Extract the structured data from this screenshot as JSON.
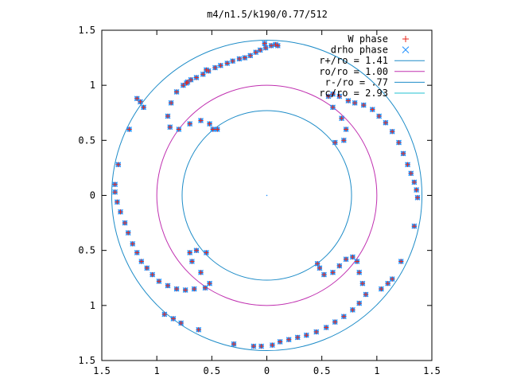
{
  "chart_data": {
    "type": "scatter",
    "title": "m4/n1.5/k190/0.77/512",
    "xlim": [
      -1.5,
      1.5
    ],
    "ylim": [
      -1.5,
      1.5
    ],
    "xticks": [
      -1.5,
      -1,
      -0.5,
      0,
      0.5,
      1,
      1.5
    ],
    "yticks": [
      -1.5,
      -1,
      -0.5,
      0,
      0.5,
      1,
      1.5
    ],
    "xtick_labels": [
      "1.5",
      "1",
      "0.5",
      "0",
      "0.5",
      "1",
      "1.5"
    ],
    "ytick_labels": [
      "1.5",
      "1",
      "0.5",
      "0",
      "0.5",
      "1",
      "1.5"
    ],
    "legend_position": "top-right",
    "grid": false,
    "legend": [
      {
        "label": "W phase",
        "marker": "+",
        "color": "#e8281c"
      },
      {
        "label": "drho phase",
        "marker": "x",
        "color": "#1e90ff"
      },
      {
        "label": "r+/ro = 1.41",
        "line": true,
        "color": "#1e8cc8"
      },
      {
        "label": "ro/ro = 1.00",
        "line": true,
        "color": "#c030b0"
      },
      {
        "label": "r-/ro = .77",
        "line": true,
        "color": "#1e8cc8"
      },
      {
        "label": "rc/ro = 2.93",
        "line": true,
        "color": "#20c0d0"
      }
    ],
    "circles": [
      {
        "name": "r+/ro",
        "r": 1.41,
        "color": "#1e8cc8"
      },
      {
        "name": "ro/ro",
        "r": 1.0,
        "color": "#c030b0"
      },
      {
        "name": "r-/ro",
        "r": 0.77,
        "color": "#1e8cc8"
      }
    ],
    "series": [
      {
        "name": "W phase",
        "color": "#e8281c",
        "points": [
          [
            0.08,
            1.37
          ],
          [
            0.04,
            1.36
          ],
          [
            -0.01,
            1.34
          ],
          [
            -0.06,
            1.32
          ],
          [
            -0.1,
            1.3
          ],
          [
            -0.15,
            1.27
          ],
          [
            -0.2,
            1.25
          ],
          [
            -0.25,
            1.24
          ],
          [
            -0.31,
            1.22
          ],
          [
            -0.36,
            1.2
          ],
          [
            -0.42,
            1.18
          ],
          [
            -0.47,
            1.16
          ],
          [
            -0.53,
            1.13
          ],
          [
            -0.58,
            1.1
          ],
          [
            -0.64,
            1.07
          ],
          [
            -0.69,
            1.05
          ],
          [
            -0.73,
            1.02
          ],
          [
            -0.76,
            1.0
          ],
          [
            -0.82,
            0.94
          ],
          [
            -0.87,
            0.84
          ],
          [
            -0.9,
            0.72
          ],
          [
            -0.88,
            0.62
          ],
          [
            -0.8,
            0.6
          ],
          [
            -0.7,
            0.65
          ],
          [
            -0.6,
            0.68
          ],
          [
            -0.52,
            0.65
          ],
          [
            -0.49,
            0.6
          ],
          [
            -0.45,
            0.6
          ],
          [
            -1.12,
            0.8
          ],
          [
            -1.15,
            0.85
          ],
          [
            -1.18,
            0.88
          ],
          [
            -1.25,
            0.6
          ],
          [
            -1.35,
            0.28
          ],
          [
            -1.38,
            0.1
          ],
          [
            -1.38,
            0.03
          ],
          [
            -1.36,
            -0.06
          ],
          [
            -1.33,
            -0.15
          ],
          [
            -1.29,
            -0.25
          ],
          [
            -1.26,
            -0.34
          ],
          [
            -1.22,
            -0.44
          ],
          [
            -1.18,
            -0.52
          ],
          [
            -1.14,
            -0.6
          ],
          [
            -1.09,
            -0.66
          ],
          [
            -1.04,
            -0.72
          ],
          [
            -0.98,
            -0.78
          ],
          [
            -0.9,
            -0.82
          ],
          [
            -0.82,
            -0.85
          ],
          [
            -0.74,
            -0.86
          ],
          [
            -0.66,
            -0.85
          ],
          [
            -0.56,
            -0.84
          ],
          [
            -0.52,
            -0.8
          ],
          [
            -0.6,
            -0.7
          ],
          [
            -0.68,
            -0.6
          ],
          [
            -0.7,
            -0.52
          ],
          [
            -0.64,
            -0.5
          ],
          [
            -0.55,
            -0.52
          ],
          [
            -0.93,
            -1.08
          ],
          [
            -0.85,
            -1.12
          ],
          [
            -0.78,
            -1.16
          ],
          [
            -0.62,
            -1.22
          ],
          [
            -0.3,
            -1.35
          ],
          [
            -0.12,
            -1.37
          ],
          [
            -0.05,
            -1.37
          ],
          [
            0.05,
            -1.36
          ],
          [
            0.12,
            -1.33
          ],
          [
            0.2,
            -1.31
          ],
          [
            0.28,
            -1.29
          ],
          [
            0.36,
            -1.27
          ],
          [
            0.45,
            -1.24
          ],
          [
            0.54,
            -1.2
          ],
          [
            0.62,
            -1.15
          ],
          [
            0.7,
            -1.1
          ],
          [
            0.78,
            -1.04
          ],
          [
            0.84,
            -0.98
          ],
          [
            0.9,
            -0.9
          ],
          [
            0.87,
            -0.8
          ],
          [
            0.84,
            -0.7
          ],
          [
            0.82,
            -0.6
          ],
          [
            0.78,
            -0.56
          ],
          [
            0.72,
            -0.58
          ],
          [
            0.66,
            -0.64
          ],
          [
            0.6,
            -0.7
          ],
          [
            0.52,
            -0.72
          ],
          [
            0.48,
            -0.66
          ],
          [
            0.46,
            -0.62
          ],
          [
            1.04,
            -0.85
          ],
          [
            1.1,
            -0.8
          ],
          [
            1.14,
            -0.76
          ],
          [
            1.22,
            -0.6
          ],
          [
            1.34,
            -0.28
          ],
          [
            1.37,
            -0.02
          ],
          [
            1.36,
            0.05
          ],
          [
            1.34,
            0.12
          ],
          [
            1.31,
            0.2
          ],
          [
            1.28,
            0.28
          ],
          [
            1.24,
            0.38
          ],
          [
            1.2,
            0.48
          ],
          [
            1.14,
            0.58
          ],
          [
            1.08,
            0.66
          ],
          [
            1.02,
            0.72
          ],
          [
            0.96,
            0.78
          ],
          [
            0.88,
            0.82
          ],
          [
            0.8,
            0.84
          ],
          [
            0.74,
            0.86
          ],
          [
            0.66,
            0.9
          ],
          [
            0.6,
            0.92
          ],
          [
            0.56,
            0.9
          ],
          [
            0.6,
            0.8
          ],
          [
            0.68,
            0.7
          ],
          [
            0.72,
            0.6
          ],
          [
            0.7,
            0.5
          ],
          [
            0.62,
            0.48
          ],
          [
            -0.02,
            1.38
          ],
          [
            0.1,
            1.36
          ],
          [
            -0.55,
            1.14
          ],
          [
            -0.72,
            1.03
          ]
        ]
      },
      {
        "name": "drho phase",
        "color": "#1e90ff",
        "points": [
          [
            0.08,
            1.37
          ],
          [
            0.04,
            1.36
          ],
          [
            -0.01,
            1.34
          ],
          [
            -0.06,
            1.32
          ],
          [
            -0.1,
            1.3
          ],
          [
            -0.15,
            1.27
          ],
          [
            -0.2,
            1.25
          ],
          [
            -0.25,
            1.24
          ],
          [
            -0.31,
            1.22
          ],
          [
            -0.36,
            1.2
          ],
          [
            -0.42,
            1.18
          ],
          [
            -0.47,
            1.16
          ],
          [
            -0.53,
            1.13
          ],
          [
            -0.58,
            1.1
          ],
          [
            -0.64,
            1.07
          ],
          [
            -0.69,
            1.05
          ],
          [
            -0.73,
            1.02
          ],
          [
            -0.76,
            1.0
          ],
          [
            -0.82,
            0.94
          ],
          [
            -0.87,
            0.84
          ],
          [
            -0.9,
            0.72
          ],
          [
            -0.88,
            0.62
          ],
          [
            -0.8,
            0.6
          ],
          [
            -0.7,
            0.65
          ],
          [
            -0.6,
            0.68
          ],
          [
            -0.52,
            0.65
          ],
          [
            -0.49,
            0.6
          ],
          [
            -0.45,
            0.6
          ],
          [
            -1.12,
            0.8
          ],
          [
            -1.15,
            0.85
          ],
          [
            -1.18,
            0.88
          ],
          [
            -1.25,
            0.6
          ],
          [
            -1.35,
            0.28
          ],
          [
            -1.38,
            0.1
          ],
          [
            -1.38,
            0.03
          ],
          [
            -1.36,
            -0.06
          ],
          [
            -1.33,
            -0.15
          ],
          [
            -1.29,
            -0.25
          ],
          [
            -1.26,
            -0.34
          ],
          [
            -1.22,
            -0.44
          ],
          [
            -1.18,
            -0.52
          ],
          [
            -1.14,
            -0.6
          ],
          [
            -1.09,
            -0.66
          ],
          [
            -1.04,
            -0.72
          ],
          [
            -0.98,
            -0.78
          ],
          [
            -0.9,
            -0.82
          ],
          [
            -0.82,
            -0.85
          ],
          [
            -0.74,
            -0.86
          ],
          [
            -0.66,
            -0.85
          ],
          [
            -0.56,
            -0.84
          ],
          [
            -0.52,
            -0.8
          ],
          [
            -0.6,
            -0.7
          ],
          [
            -0.68,
            -0.6
          ],
          [
            -0.7,
            -0.52
          ],
          [
            -0.64,
            -0.5
          ],
          [
            -0.55,
            -0.52
          ],
          [
            -0.93,
            -1.08
          ],
          [
            -0.85,
            -1.12
          ],
          [
            -0.78,
            -1.16
          ],
          [
            -0.62,
            -1.22
          ],
          [
            -0.3,
            -1.35
          ],
          [
            -0.12,
            -1.37
          ],
          [
            -0.05,
            -1.37
          ],
          [
            0.05,
            -1.36
          ],
          [
            0.12,
            -1.33
          ],
          [
            0.2,
            -1.31
          ],
          [
            0.28,
            -1.29
          ],
          [
            0.36,
            -1.27
          ],
          [
            0.45,
            -1.24
          ],
          [
            0.54,
            -1.2
          ],
          [
            0.62,
            -1.15
          ],
          [
            0.7,
            -1.1
          ],
          [
            0.78,
            -1.04
          ],
          [
            0.84,
            -0.98
          ],
          [
            0.9,
            -0.9
          ],
          [
            0.87,
            -0.8
          ],
          [
            0.84,
            -0.7
          ],
          [
            0.82,
            -0.6
          ],
          [
            0.78,
            -0.56
          ],
          [
            0.72,
            -0.58
          ],
          [
            0.66,
            -0.64
          ],
          [
            0.6,
            -0.7
          ],
          [
            0.52,
            -0.72
          ],
          [
            0.48,
            -0.66
          ],
          [
            0.46,
            -0.62
          ],
          [
            1.04,
            -0.85
          ],
          [
            1.1,
            -0.8
          ],
          [
            1.14,
            -0.76
          ],
          [
            1.22,
            -0.6
          ],
          [
            1.34,
            -0.28
          ],
          [
            1.37,
            -0.02
          ],
          [
            1.36,
            0.05
          ],
          [
            1.34,
            0.12
          ],
          [
            1.31,
            0.2
          ],
          [
            1.28,
            0.28
          ],
          [
            1.24,
            0.38
          ],
          [
            1.2,
            0.48
          ],
          [
            1.14,
            0.58
          ],
          [
            1.08,
            0.66
          ],
          [
            1.02,
            0.72
          ],
          [
            0.96,
            0.78
          ],
          [
            0.88,
            0.82
          ],
          [
            0.8,
            0.84
          ],
          [
            0.74,
            0.86
          ],
          [
            0.66,
            0.9
          ],
          [
            0.6,
            0.92
          ],
          [
            0.56,
            0.9
          ],
          [
            0.6,
            0.8
          ],
          [
            0.68,
            0.7
          ],
          [
            0.72,
            0.6
          ],
          [
            0.7,
            0.5
          ],
          [
            0.62,
            0.48
          ],
          [
            -0.02,
            1.38
          ],
          [
            0.1,
            1.36
          ],
          [
            -0.55,
            1.14
          ],
          [
            -0.72,
            1.03
          ]
        ]
      }
    ]
  }
}
